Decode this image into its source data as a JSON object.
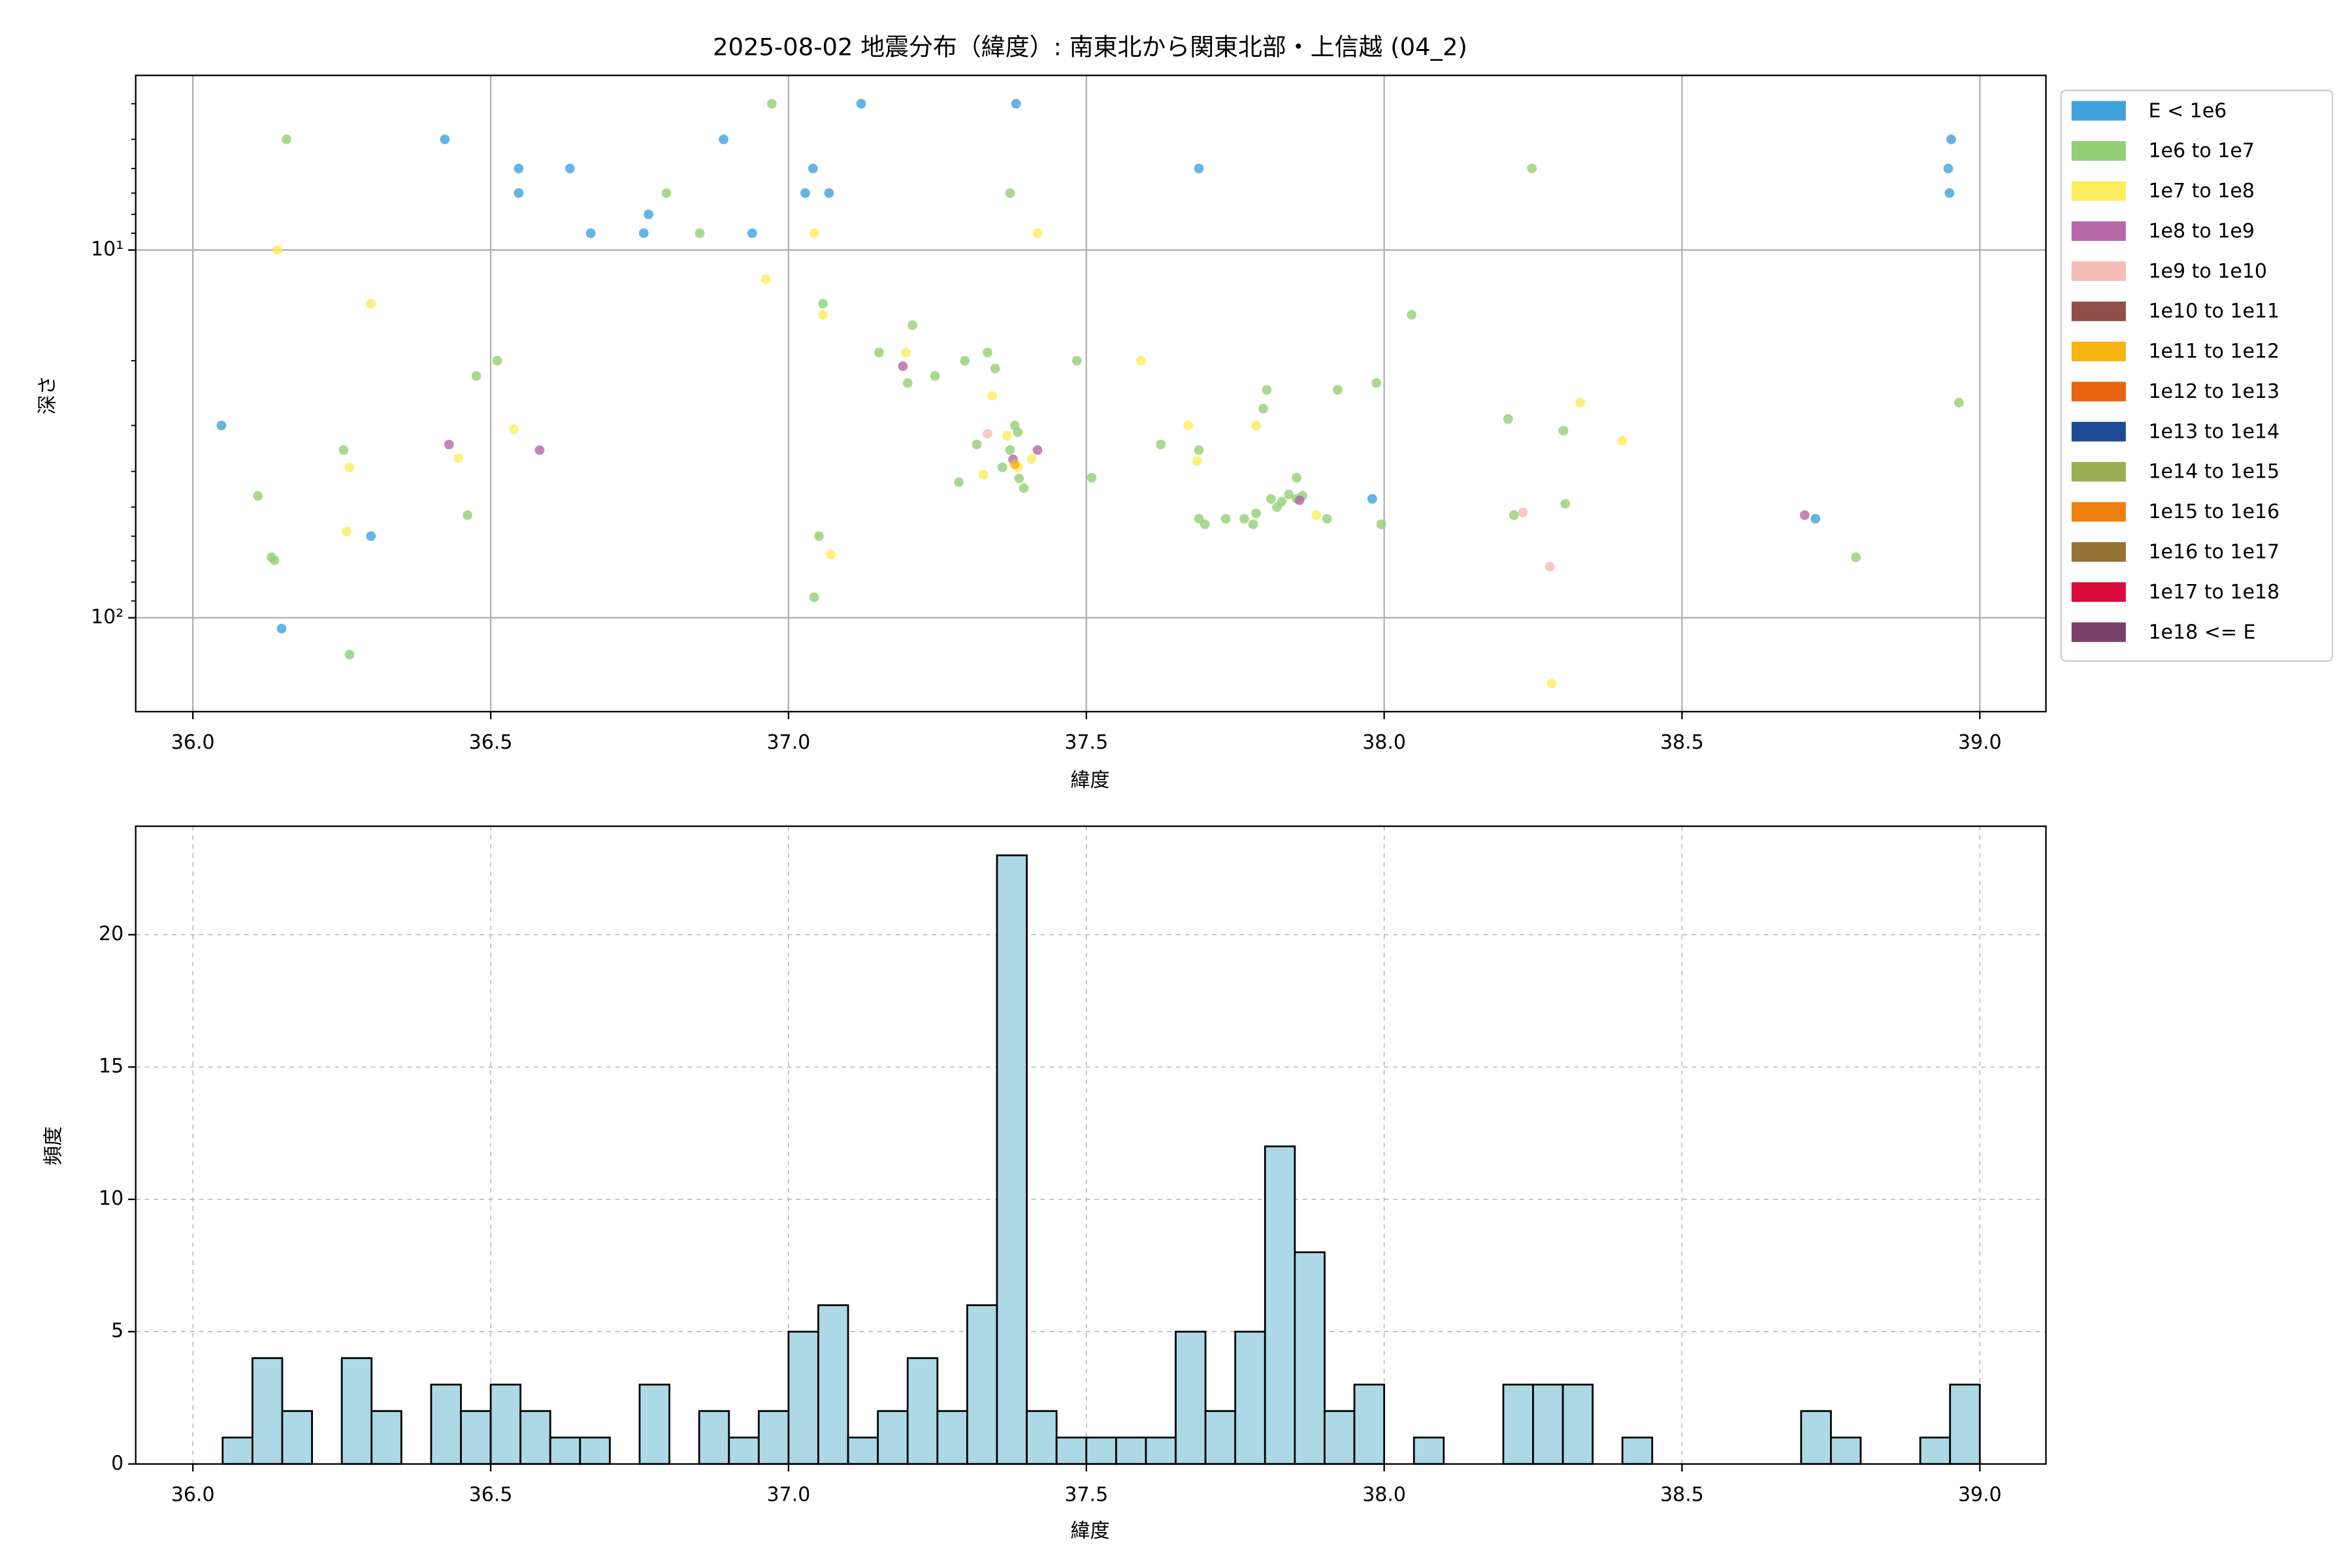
{
  "chart_data": [
    {
      "type": "scatter",
      "title": "2025-08-02 地震分布（緯度）: 南東北から関東北部・上信越 (04_2)",
      "xlabel": "緯度",
      "ylabel": "深さ",
      "xlim": [
        35.904,
        39.111
      ],
      "ylim": [
        3.35,
        180
      ],
      "yscale": "log",
      "y_inverted": true,
      "grid": true,
      "legend": "outside-right",
      "xticks": [
        {
          "value": 36,
          "label": "36.0"
        },
        36.5,
        {
          "value": 37,
          "label": "37.0"
        },
        37.5,
        {
          "value": 38,
          "label": "38.0"
        },
        38.5,
        {
          "value": 39,
          "label": "39.0"
        }
      ],
      "yticks": [
        {
          "value": 10,
          "label": "10¹"
        },
        {
          "value": 100,
          "label": "10²"
        }
      ],
      "yminorticks": [
        4,
        5,
        6,
        7,
        8,
        9,
        20,
        30,
        40,
        50,
        60,
        70,
        80,
        90
      ],
      "series": [
        {
          "name": "E < 1e6",
          "color": "#3fa2dc",
          "x": [
            36.423,
            36.547,
            36.547,
            36.633,
            36.668,
            36.757,
            36.765,
            36.891,
            36.939,
            37.028,
            37.041,
            37.068,
            37.122,
            37.382,
            37.689,
            38.952,
            38.947,
            38.949,
            36.048,
            36.299,
            36.149,
            37.98,
            38.724
          ],
          "y": [
            5,
            6,
            7,
            6,
            9,
            9,
            8,
            5,
            9,
            7,
            6,
            7,
            4,
            4,
            6,
            5,
            6,
            7,
            30,
            60,
            107,
            47.5,
            53.8
          ]
        },
        {
          "name": "1e6 to 1e7",
          "color": "#93cf76",
          "x": [
            36.157,
            36.972,
            36.795,
            36.851,
            37.372,
            38.248,
            38.046,
            37.208,
            37.058,
            37.152,
            37.334,
            37.2,
            37.246,
            37.296,
            37.347,
            37.484,
            36.511,
            36.476,
            36.253,
            36.109,
            36.132,
            36.137,
            36.461,
            37.051,
            37.043,
            36.263,
            37.286,
            37.316,
            37.385,
            37.38,
            37.372,
            37.359,
            37.387,
            37.395,
            37.509,
            37.625,
            37.689,
            37.797,
            37.803,
            37.922,
            37.987,
            38.208,
            38.301,
            38.965,
            37.689,
            37.699,
            37.734,
            37.765,
            37.78,
            37.785,
            37.81,
            37.82,
            37.828,
            37.84,
            37.853,
            37.863,
            37.853,
            37.904,
            37.995,
            38.218,
            38.304,
            38.792
          ],
          "y": [
            5,
            4,
            7,
            9,
            7,
            6,
            15,
            16,
            14,
            19,
            19,
            23,
            22,
            20,
            21,
            20,
            20,
            22,
            35,
            46.6,
            68.5,
            69.8,
            52.6,
            60,
            88,
            126,
            42.8,
            33.8,
            31.3,
            30,
            35,
            39,
            41.8,
            44.4,
            41.6,
            33.8,
            35,
            27,
            24,
            24,
            23,
            28.8,
            31,
            26,
            53.8,
            55.7,
            53.8,
            53.8,
            55.7,
            52,
            47.5,
            50,
            48.3,
            46.2,
            47.5,
            46.6,
            41.6,
            53.8,
            55.7,
            52.6,
            49,
            68.5
          ]
        },
        {
          "name": "1e7 to 1e8",
          "color": "#fdec5d",
          "x": [
            36.142,
            37.043,
            37.418,
            36.962,
            37.058,
            36.299,
            37.592,
            37.197,
            37.342,
            38.329,
            38.4,
            37.671,
            37.785,
            36.539,
            36.446,
            36.263,
            37.686,
            37.367,
            37.327,
            37.385,
            37.408,
            37.886,
            36.258,
            37.071,
            38.281
          ],
          "y": [
            10,
            9,
            9,
            12,
            15,
            14,
            20,
            19,
            24.9,
            26,
            33,
            30,
            30,
            30.7,
            36.8,
            39,
            37.5,
            32,
            40.8,
            39,
            37,
            52.6,
            58.3,
            67.3,
            151
          ]
        },
        {
          "name": "1e8 to 1e9",
          "color": "#b867a8",
          "x": [
            36.43,
            36.582,
            37.192,
            37.418,
            37.858,
            38.706,
            37.377
          ],
          "y": [
            33.8,
            35,
            20.7,
            35,
            47.9,
            52.6,
            37.1
          ]
        },
        {
          "name": "1e9 to 1e10",
          "color": "#f4bbb7",
          "x": [
            37.334,
            38.233,
            38.278
          ],
          "y": [
            31.6,
            51.7,
            72.6
          ]
        },
        {
          "name": "1e10 to 1e11",
          "color": "#924f49",
          "x": [],
          "y": []
        },
        {
          "name": "1e11 to 1e12",
          "color": "#f6b40e",
          "x": [
            37.38
          ],
          "y": [
            38.3
          ]
        },
        {
          "name": "1e12 to 1e13",
          "color": "#ea6310",
          "x": [],
          "y": []
        },
        {
          "name": "1e13 to 1e14",
          "color": "#1d4a92",
          "x": [],
          "y": []
        },
        {
          "name": "1e14 to 1e15",
          "color": "#9bae54",
          "x": [],
          "y": []
        },
        {
          "name": "1e15 to 1e16",
          "color": "#f08010",
          "x": [],
          "y": []
        },
        {
          "name": "1e16 to 1e17",
          "color": "#957235",
          "x": [],
          "y": []
        },
        {
          "name": "1e17 to 1e18",
          "color": "#d80b3a",
          "x": [],
          "y": []
        },
        {
          "name": "1e18 <= E",
          "color": "#7a406d",
          "x": [],
          "y": []
        }
      ]
    },
    {
      "type": "histogram",
      "xlabel": "緯度",
      "ylabel": "頻度",
      "xlim": [
        35.904,
        39.111
      ],
      "ylim": [
        0,
        24.1
      ],
      "grid": true,
      "grid_style": "dashed",
      "color": "#add8e6",
      "edgecolor": "#000000",
      "xticks": [
        {
          "value": 36,
          "label": "36.0"
        },
        36.5,
        {
          "value": 37,
          "label": "37.0"
        },
        37.5,
        {
          "value": 38,
          "label": "38.0"
        },
        38.5,
        {
          "value": 39,
          "label": "39.0"
        }
      ],
      "yticks": [
        0,
        5,
        10,
        15,
        20
      ],
      "bins": [
        36,
        36.05,
        36.1,
        36.15,
        36.2,
        36.25,
        36.3,
        36.35,
        36.4,
        36.45,
        36.5,
        36.55,
        36.6,
        36.65,
        36.7,
        36.75,
        36.8,
        36.85,
        36.9,
        36.95,
        37,
        37.05,
        37.1,
        37.15,
        37.2,
        37.25,
        37.3,
        37.35,
        37.4,
        37.45,
        37.5,
        37.55,
        37.6,
        37.65,
        37.7,
        37.75,
        37.8,
        37.85,
        37.9,
        37.95,
        38,
        38.05,
        38.1,
        38.15,
        38.2,
        38.25,
        38.3,
        38.35,
        38.4,
        38.45,
        38.5,
        38.55,
        38.6,
        38.65,
        38.7,
        38.75,
        38.8,
        38.85,
        38.9,
        38.95,
        39
      ],
      "counts": [
        0,
        1,
        4,
        2,
        0,
        4,
        2,
        0,
        3,
        2,
        3,
        2,
        1,
        1,
        0,
        3,
        0,
        2,
        1,
        2,
        5,
        6,
        1,
        2,
        4,
        2,
        6,
        23,
        2,
        1,
        1,
        1,
        1,
        5,
        2,
        5,
        12,
        8,
        2,
        3,
        0,
        1,
        0,
        0,
        3,
        3,
        3,
        0,
        1,
        0,
        0,
        0,
        0,
        0,
        2,
        1,
        0,
        0,
        1,
        3
      ]
    }
  ]
}
